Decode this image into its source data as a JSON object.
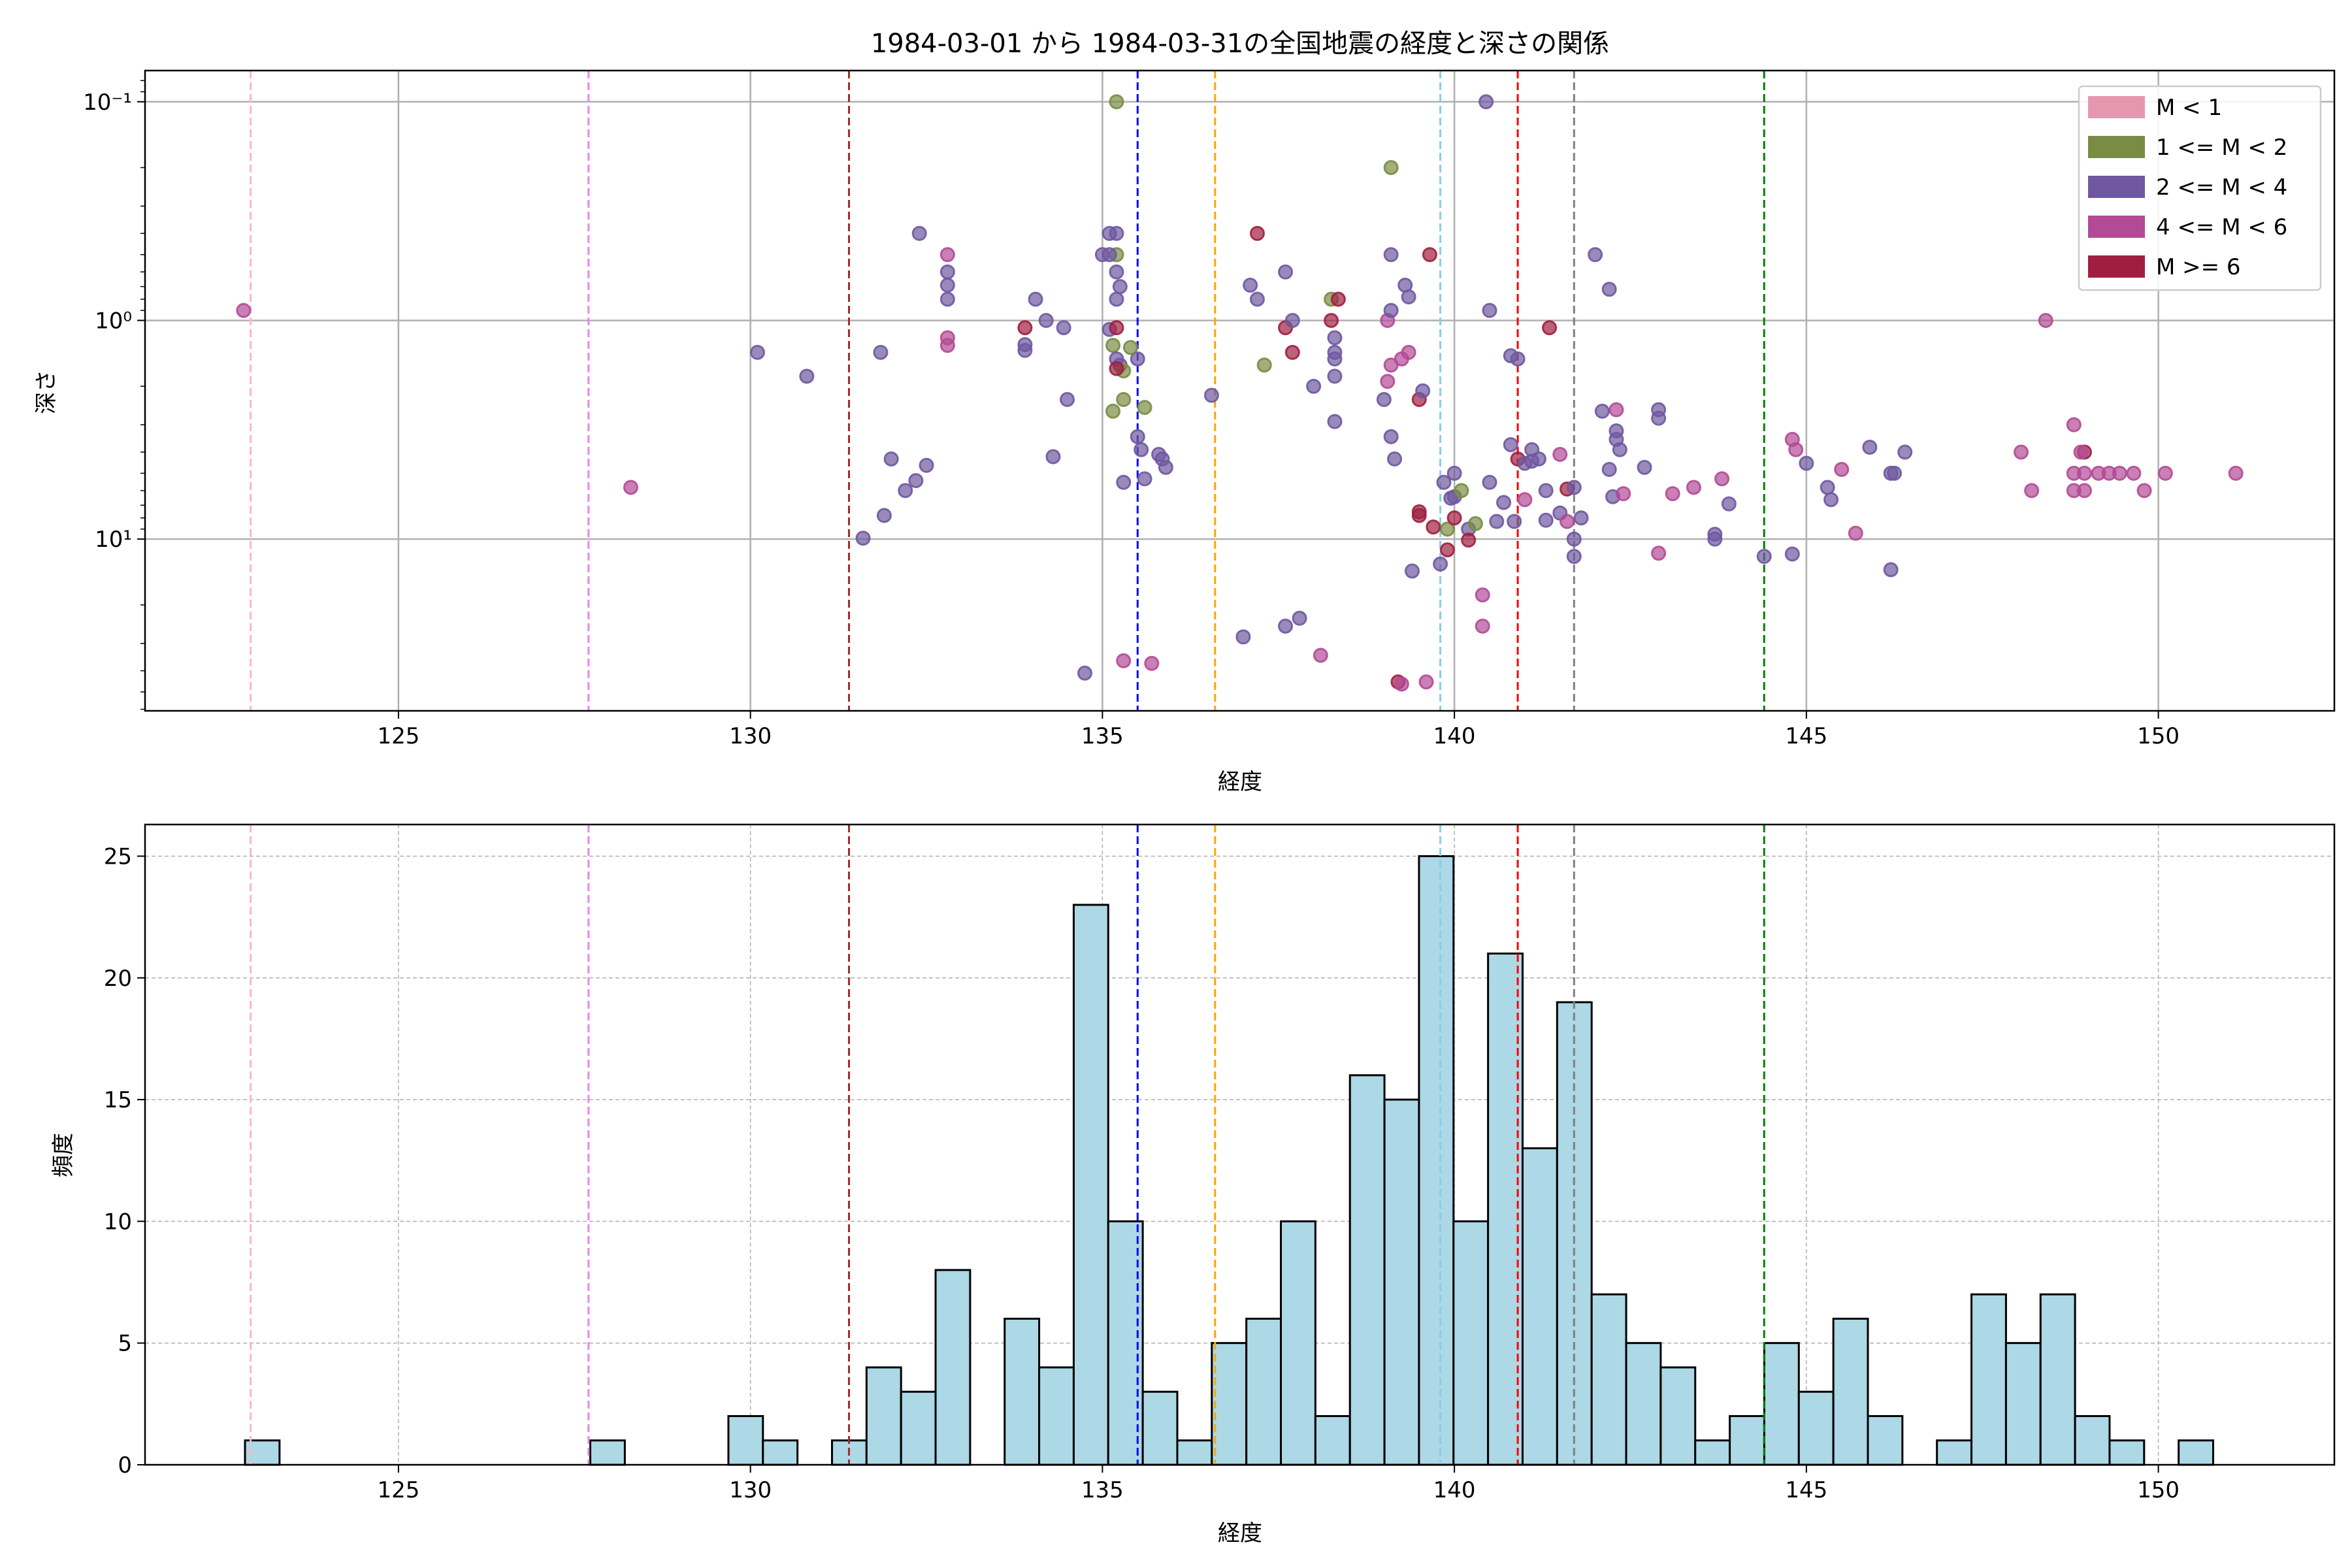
{
  "chart_data": [
    {
      "type": "scatter",
      "title": "1984-03-01 から 1984-03-31の全国地震の経度と深さの関係",
      "xlabel": "経度",
      "ylabel": "深さ",
      "xlim": [
        121.4,
        152.5
      ],
      "ylim": [
        0.072,
        61
      ],
      "yscale": "log",
      "yinverted": true,
      "xticks": [
        125,
        130,
        135,
        140,
        145,
        150
      ],
      "xtick_labels": [
        "125",
        "130",
        "135",
        "140",
        "145",
        "150"
      ],
      "yticks": [
        0.1,
        1,
        10
      ],
      "ytick_labels": [
        "10⁻¹",
        "10⁰",
        "10¹"
      ],
      "grid": true,
      "legend_position": "top-right",
      "legend": [
        {
          "label": "M < 1",
          "color": "#e597b0"
        },
        {
          "label": "1 <= M < 2",
          "color": "#7a8c43"
        },
        {
          "label": "2 <= M < 4",
          "color": "#6f58a0"
        },
        {
          "label": "4 <= M < 6",
          "color": "#b24a96"
        },
        {
          "label": "M >= 6",
          "color": "#a01f40"
        }
      ],
      "vlines": [
        {
          "x": 122.9,
          "color": "#ffb6c1"
        },
        {
          "x": 127.7,
          "color": "#ee82ee"
        },
        {
          "x": 131.4,
          "color": "#a52a2a"
        },
        {
          "x": 135.5,
          "color": "#0000ff"
        },
        {
          "x": 136.6,
          "color": "#ffa500"
        },
        {
          "x": 139.8,
          "color": "#87ceeb"
        },
        {
          "x": 140.9,
          "color": "#ff0000"
        },
        {
          "x": 141.7,
          "color": "#808080"
        },
        {
          "x": 144.4,
          "color": "#008000"
        }
      ],
      "points": [
        [
          122.8,
          0.9,
          3
        ],
        [
          128.3,
          5.8,
          3
        ],
        [
          130.1,
          1.4,
          2
        ],
        [
          130.8,
          1.8,
          2
        ],
        [
          131.6,
          9.9,
          2
        ],
        [
          131.85,
          1.4,
          2
        ],
        [
          131.9,
          7.8,
          2
        ],
        [
          132.0,
          4.3,
          2
        ],
        [
          132.2,
          6.0,
          2
        ],
        [
          132.35,
          5.4,
          2
        ],
        [
          132.5,
          4.6,
          2
        ],
        [
          132.4,
          0.4,
          2
        ],
        [
          132.8,
          0.5,
          3
        ],
        [
          132.8,
          0.6,
          2
        ],
        [
          132.8,
          0.69,
          2
        ],
        [
          132.8,
          0.8,
          2
        ],
        [
          132.8,
          1.2,
          3
        ],
        [
          132.8,
          1.3,
          3
        ],
        [
          133.9,
          1.08,
          4
        ],
        [
          133.9,
          1.29,
          2
        ],
        [
          133.9,
          1.37,
          2
        ],
        [
          134.05,
          0.8,
          2
        ],
        [
          134.2,
          1.0,
          2
        ],
        [
          134.45,
          1.08,
          2
        ],
        [
          134.5,
          2.3,
          2
        ],
        [
          134.3,
          4.2,
          2
        ],
        [
          134.75,
          41,
          2
        ],
        [
          135.0,
          0.5,
          2
        ],
        [
          135.1,
          0.4,
          2
        ],
        [
          135.2,
          0.4,
          2
        ],
        [
          135.2,
          0.5,
          1
        ],
        [
          135.1,
          0.5,
          2
        ],
        [
          135.2,
          0.1,
          1
        ],
        [
          135.2,
          0.6,
          2
        ],
        [
          135.25,
          0.7,
          2
        ],
        [
          135.2,
          0.8,
          2
        ],
        [
          135.1,
          1.1,
          2
        ],
        [
          135.15,
          1.3,
          1
        ],
        [
          135.2,
          1.5,
          2
        ],
        [
          135.25,
          1.6,
          2
        ],
        [
          135.3,
          1.7,
          1
        ],
        [
          135.3,
          2.3,
          1
        ],
        [
          135.15,
          2.6,
          1
        ],
        [
          135.2,
          1.08,
          4
        ],
        [
          135.2,
          1.66,
          4
        ],
        [
          135.3,
          36,
          3
        ],
        [
          135.7,
          37,
          3
        ],
        [
          135.5,
          1.5,
          2
        ],
        [
          135.5,
          3.4,
          2
        ],
        [
          135.55,
          3.9,
          2
        ],
        [
          135.6,
          5.3,
          2
        ],
        [
          135.6,
          2.5,
          1
        ],
        [
          135.3,
          5.5,
          2
        ],
        [
          135.4,
          1.33,
          1
        ],
        [
          135.8,
          4.1,
          2
        ],
        [
          135.85,
          4.3,
          2
        ],
        [
          135.9,
          4.7,
          2
        ],
        [
          136.55,
          2.2,
          2
        ],
        [
          137.0,
          28,
          2
        ],
        [
          137.1,
          0.69,
          2
        ],
        [
          137.2,
          0.8,
          2
        ],
        [
          137.2,
          0.4,
          4
        ],
        [
          137.3,
          1.6,
          1
        ],
        [
          137.6,
          0.6,
          2
        ],
        [
          137.6,
          25,
          2
        ],
        [
          137.6,
          1.08,
          4
        ],
        [
          137.7,
          1.4,
          4
        ],
        [
          137.7,
          1.0,
          2
        ],
        [
          137.8,
          23,
          2
        ],
        [
          138.0,
          2.0,
          2
        ],
        [
          138.1,
          34,
          3
        ],
        [
          138.25,
          0.8,
          1
        ],
        [
          138.25,
          1.0,
          4
        ],
        [
          138.35,
          0.8,
          4
        ],
        [
          138.3,
          1.2,
          2
        ],
        [
          138.3,
          1.4,
          2
        ],
        [
          138.3,
          1.5,
          2
        ],
        [
          138.3,
          1.8,
          2
        ],
        [
          138.3,
          2.9,
          2
        ],
        [
          139.1,
          0.2,
          1
        ],
        [
          139.1,
          0.5,
          2
        ],
        [
          139.05,
          1.0,
          3
        ],
        [
          139.1,
          0.9,
          2
        ],
        [
          139.1,
          1.6,
          3
        ],
        [
          139.05,
          1.9,
          3
        ],
        [
          139.0,
          2.3,
          2
        ],
        [
          139.1,
          3.4,
          2
        ],
        [
          139.15,
          4.3,
          2
        ],
        [
          139.3,
          0.69,
          2
        ],
        [
          139.35,
          0.78,
          2
        ],
        [
          139.35,
          1.4,
          3
        ],
        [
          139.25,
          1.5,
          3
        ],
        [
          139.4,
          14,
          2
        ],
        [
          139.5,
          7.5,
          4
        ],
        [
          139.5,
          7.8,
          4
        ],
        [
          139.5,
          2.3,
          4
        ],
        [
          139.55,
          2.1,
          2
        ],
        [
          139.6,
          45,
          3
        ],
        [
          139.2,
          45,
          4
        ],
        [
          139.25,
          46,
          3
        ],
        [
          139.65,
          0.5,
          4
        ],
        [
          139.8,
          13,
          2
        ],
        [
          139.9,
          9.0,
          1
        ],
        [
          139.95,
          6.5,
          2
        ],
        [
          139.7,
          8.8,
          4
        ],
        [
          140.0,
          6.4,
          2
        ],
        [
          140.1,
          6.0,
          1
        ],
        [
          140.2,
          9.0,
          2
        ],
        [
          140.3,
          8.5,
          1
        ],
        [
          139.85,
          5.5,
          2
        ],
        [
          140.0,
          5.0,
          2
        ],
        [
          139.9,
          11.2,
          4
        ],
        [
          140.0,
          8.0,
          4
        ],
        [
          140.2,
          10.1,
          4
        ],
        [
          140.45,
          0.1,
          2
        ],
        [
          140.5,
          0.9,
          2
        ],
        [
          140.4,
          18,
          3
        ],
        [
          140.4,
          25,
          3
        ],
        [
          140.5,
          5.5,
          2
        ],
        [
          140.6,
          8.3,
          2
        ],
        [
          140.7,
          6.8,
          2
        ],
        [
          140.8,
          3.7,
          2
        ],
        [
          140.9,
          4.3,
          4
        ],
        [
          140.85,
          8.3,
          2
        ],
        [
          141.0,
          4.5,
          2
        ],
        [
          141.1,
          4.4,
          2
        ],
        [
          141.2,
          4.3,
          2
        ],
        [
          141.0,
          6.6,
          3
        ],
        [
          141.1,
          3.9,
          2
        ],
        [
          141.3,
          6.0,
          2
        ],
        [
          141.3,
          8.2,
          2
        ],
        [
          140.9,
          1.5,
          2
        ],
        [
          140.8,
          1.45,
          2
        ],
        [
          141.35,
          1.08,
          4
        ],
        [
          141.5,
          4.1,
          3
        ],
        [
          141.6,
          5.9,
          4
        ],
        [
          141.7,
          5.8,
          2
        ],
        [
          141.8,
          8.0,
          2
        ],
        [
          141.7,
          10,
          2
        ],
        [
          141.7,
          12,
          2
        ],
        [
          141.5,
          7.6,
          2
        ],
        [
          141.6,
          8.3,
          3
        ],
        [
          142.0,
          0.5,
          2
        ],
        [
          142.2,
          0.72,
          2
        ],
        [
          142.3,
          2.56,
          3
        ],
        [
          142.3,
          3.5,
          2
        ],
        [
          142.35,
          3.9,
          2
        ],
        [
          142.3,
          3.2,
          2
        ],
        [
          142.1,
          2.6,
          2
        ],
        [
          142.2,
          4.8,
          2
        ],
        [
          142.25,
          6.4,
          2
        ],
        [
          142.4,
          6.2,
          3
        ],
        [
          142.9,
          11.6,
          3
        ],
        [
          142.9,
          2.56,
          2
        ],
        [
          142.9,
          2.8,
          2
        ],
        [
          142.7,
          4.7,
          2
        ],
        [
          143.1,
          6.2,
          3
        ],
        [
          143.7,
          9.5,
          2
        ],
        [
          143.7,
          10,
          2
        ],
        [
          143.8,
          5.3,
          3
        ],
        [
          143.9,
          6.9,
          2
        ],
        [
          143.4,
          5.8,
          3
        ],
        [
          144.8,
          3.5,
          3
        ],
        [
          144.85,
          3.9,
          3
        ],
        [
          144.8,
          11.7,
          2
        ],
        [
          144.4,
          12,
          2
        ],
        [
          145.0,
          4.5,
          2
        ],
        [
          145.5,
          4.8,
          3
        ],
        [
          145.3,
          5.8,
          2
        ],
        [
          145.35,
          6.6,
          2
        ],
        [
          145.7,
          9.4,
          3
        ],
        [
          145.9,
          3.8,
          2
        ],
        [
          146.2,
          5.0,
          2
        ],
        [
          146.25,
          5.0,
          2
        ],
        [
          146.2,
          13.8,
          2
        ],
        [
          146.4,
          4.0,
          2
        ],
        [
          148.05,
          4.0,
          3
        ],
        [
          148.2,
          6.0,
          3
        ],
        [
          148.4,
          1.0,
          3
        ],
        [
          148.8,
          3.0,
          3
        ],
        [
          148.95,
          4.0,
          4
        ],
        [
          148.9,
          4.0,
          3
        ],
        [
          148.8,
          5.0,
          3
        ],
        [
          148.95,
          5.0,
          3
        ],
        [
          149.15,
          5.0,
          3
        ],
        [
          149.3,
          5.0,
          3
        ],
        [
          149.45,
          5.0,
          3
        ],
        [
          149.65,
          5.0,
          3
        ],
        [
          148.8,
          6.0,
          3
        ],
        [
          148.95,
          6.0,
          3
        ],
        [
          149.8,
          6.0,
          3
        ],
        [
          150.1,
          5.0,
          3
        ],
        [
          151.1,
          5.0,
          3
        ]
      ]
    },
    {
      "type": "bar",
      "subtype": "histogram",
      "xlabel": "経度",
      "ylabel": "頻度",
      "xlim": [
        121.4,
        152.5
      ],
      "ylim": [
        0,
        26.3
      ],
      "xticks": [
        125,
        130,
        135,
        140,
        145,
        150
      ],
      "xtick_labels": [
        "125",
        "130",
        "135",
        "140",
        "145",
        "150"
      ],
      "yticks": [
        0,
        5,
        10,
        15,
        20,
        25
      ],
      "ytick_labels": [
        "0",
        "5",
        "10",
        "15",
        "20",
        "25"
      ],
      "grid": true,
      "bar_color": "#add8e6",
      "bin_start": 122.82,
      "bin_width": 0.4905,
      "counts": [
        1,
        0,
        0,
        0,
        0,
        0,
        0,
        0,
        0,
        0,
        1,
        0,
        0,
        0,
        2,
        1,
        0,
        1,
        4,
        3,
        8,
        0,
        6,
        4,
        23,
        10,
        3,
        1,
        5,
        6,
        10,
        2,
        16,
        15,
        25,
        10,
        21,
        13,
        19,
        7,
        5,
        4,
        1,
        2,
        5,
        3,
        6,
        2,
        0,
        1,
        7,
        5,
        7,
        2,
        1,
        0,
        1
      ],
      "vlines": [
        {
          "x": 122.9,
          "color": "#ffb6c1"
        },
        {
          "x": 127.7,
          "color": "#ee82ee"
        },
        {
          "x": 131.4,
          "color": "#a52a2a"
        },
        {
          "x": 135.5,
          "color": "#0000ff"
        },
        {
          "x": 136.6,
          "color": "#ffa500"
        },
        {
          "x": 139.8,
          "color": "#87ceeb"
        },
        {
          "x": 140.9,
          "color": "#ff0000"
        },
        {
          "x": 141.7,
          "color": "#808080"
        },
        {
          "x": 144.4,
          "color": "#008000"
        }
      ]
    }
  ]
}
